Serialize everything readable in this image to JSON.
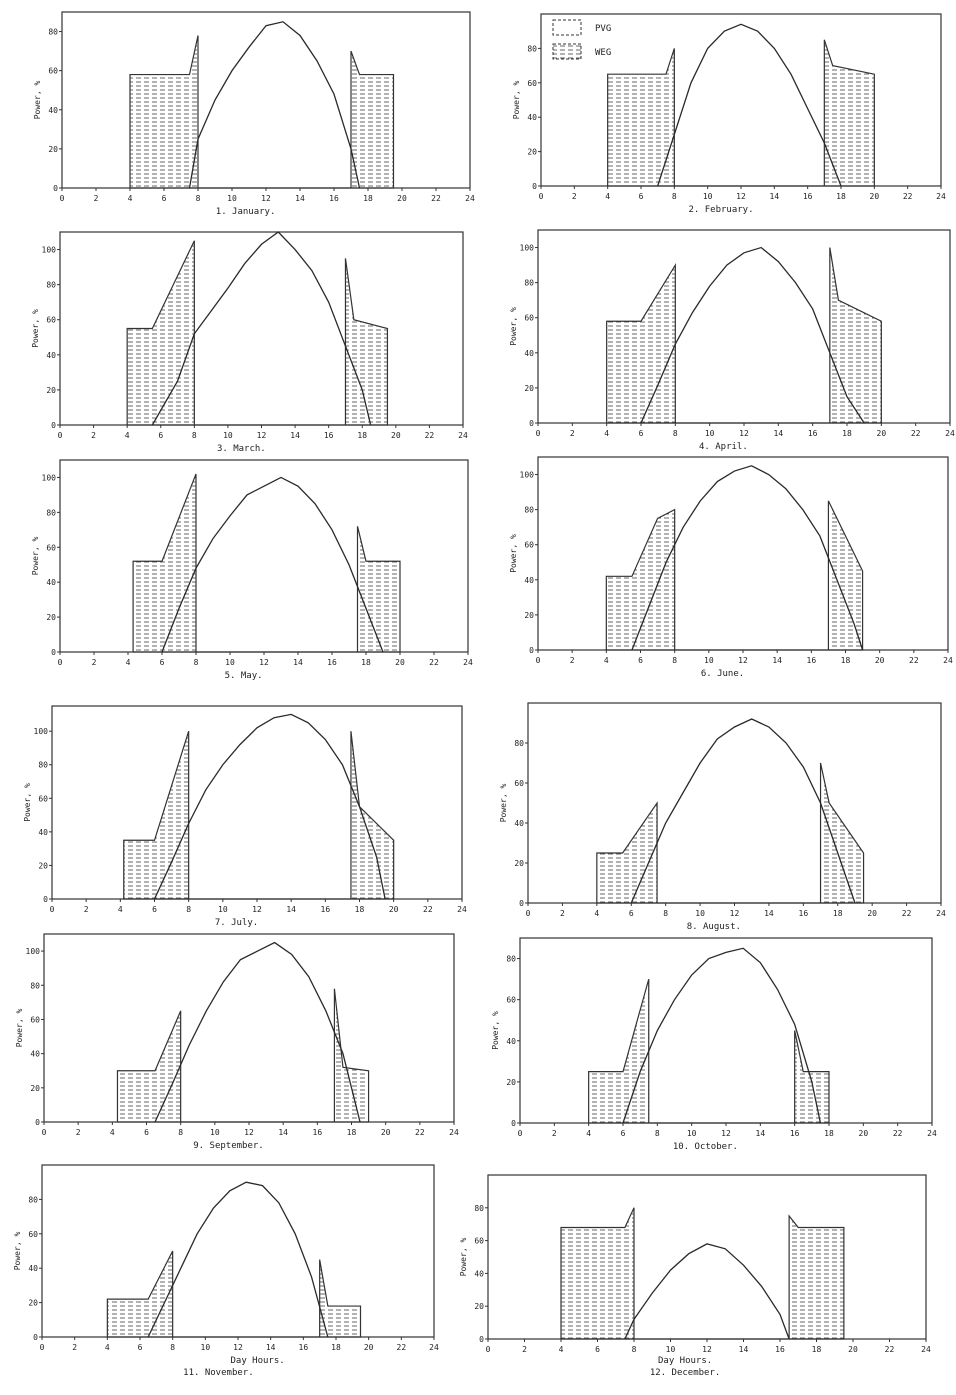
{
  "figure": {
    "common_xlabel": "Day Hours."
  },
  "legend": {
    "items": [
      {
        "label": "PVG",
        "swatch": "empty"
      },
      {
        "label": "WEG",
        "swatch": "hatched"
      }
    ]
  },
  "chart_data": [
    {
      "type": "area",
      "title": "1. January.",
      "ylabel": "Power, %",
      "xlim": [
        0,
        24
      ],
      "ylim": [
        0,
        90
      ],
      "xticks": [
        0,
        2,
        4,
        6,
        8,
        10,
        12,
        14,
        16,
        18,
        20,
        22,
        24
      ],
      "yticks": [
        0,
        20,
        40,
        60,
        80
      ],
      "series": [
        {
          "name": "PVG",
          "x": [
            7.5,
            8,
            9,
            10,
            11,
            12,
            13,
            14,
            15,
            16,
            17,
            17.5
          ],
          "y": [
            0,
            25,
            45,
            60,
            72,
            83,
            85,
            78,
            65,
            48,
            20,
            0
          ]
        },
        {
          "name": "WEG",
          "x": [
            4,
            4,
            7.5,
            8,
            8,
            17,
            17,
            17.5,
            19.5,
            19.5
          ],
          "y": [
            0,
            58,
            58,
            78,
            0,
            0,
            70,
            58,
            58,
            0
          ]
        }
      ]
    },
    {
      "type": "area",
      "title": "2. February.",
      "ylabel": "Power, %",
      "xlim": [
        0,
        24
      ],
      "ylim": [
        0,
        100
      ],
      "xticks": [
        0,
        2,
        4,
        6,
        8,
        10,
        12,
        14,
        16,
        18,
        20,
        22,
        24
      ],
      "yticks": [
        0,
        20,
        40,
        60,
        80
      ],
      "series": [
        {
          "name": "PVG",
          "x": [
            7,
            8,
            9,
            10,
            11,
            12,
            13,
            14,
            15,
            16,
            17,
            18
          ],
          "y": [
            0,
            30,
            60,
            80,
            90,
            94,
            90,
            80,
            65,
            45,
            25,
            0
          ]
        },
        {
          "name": "WEG",
          "x": [
            4,
            4,
            7.5,
            8,
            8,
            17,
            17,
            17.5,
            20,
            20
          ],
          "y": [
            0,
            65,
            65,
            80,
            0,
            0,
            85,
            70,
            65,
            0
          ]
        }
      ]
    },
    {
      "type": "area",
      "title": "3. March.",
      "ylabel": "Power, %",
      "xlim": [
        0,
        24
      ],
      "ylim": [
        0,
        110
      ],
      "xticks": [
        0,
        2,
        4,
        6,
        8,
        10,
        12,
        14,
        16,
        18,
        20,
        22,
        24
      ],
      "yticks": [
        0,
        20,
        40,
        60,
        80,
        100
      ],
      "series": [
        {
          "name": "PVG",
          "x": [
            5.5,
            7,
            8,
            9,
            10,
            11,
            12,
            13,
            14,
            15,
            16,
            17,
            18,
            18.5
          ],
          "y": [
            0,
            25,
            52,
            65,
            78,
            92,
            103,
            110,
            100,
            88,
            70,
            45,
            20,
            0
          ]
        },
        {
          "name": "WEG",
          "x": [
            4,
            4,
            5.5,
            8,
            8,
            17,
            17,
            17.5,
            19.5,
            19.5
          ],
          "y": [
            0,
            55,
            55,
            105,
            0,
            0,
            95,
            60,
            55,
            0
          ]
        }
      ]
    },
    {
      "type": "area",
      "title": "4. April.",
      "ylabel": "Power, %",
      "xlim": [
        0,
        24
      ],
      "ylim": [
        0,
        110
      ],
      "xticks": [
        0,
        2,
        4,
        6,
        8,
        10,
        12,
        14,
        16,
        18,
        20,
        22,
        24
      ],
      "yticks": [
        0,
        20,
        40,
        60,
        80,
        100
      ],
      "series": [
        {
          "name": "PVG",
          "x": [
            6,
            7,
            8,
            9,
            10,
            11,
            12,
            13,
            14,
            15,
            16,
            17,
            18,
            19
          ],
          "y": [
            0,
            22,
            45,
            63,
            78,
            90,
            97,
            100,
            92,
            80,
            65,
            40,
            15,
            0
          ]
        },
        {
          "name": "WEG",
          "x": [
            4,
            4,
            6,
            8,
            8,
            17,
            17,
            17.5,
            20,
            20
          ],
          "y": [
            0,
            58,
            58,
            90,
            0,
            0,
            100,
            70,
            58,
            0
          ]
        }
      ]
    },
    {
      "type": "area",
      "title": "5. May.",
      "ylabel": "Power, %",
      "xlim": [
        0,
        24
      ],
      "ylim": [
        0,
        110
      ],
      "xticks": [
        0,
        2,
        4,
        6,
        8,
        10,
        12,
        14,
        16,
        18,
        20,
        22,
        24
      ],
      "yticks": [
        0,
        20,
        40,
        60,
        80,
        100
      ],
      "series": [
        {
          "name": "PVG",
          "x": [
            6,
            7,
            8,
            9,
            10,
            11,
            12,
            13,
            14,
            15,
            16,
            17,
            18,
            19
          ],
          "y": [
            0,
            25,
            48,
            65,
            78,
            90,
            95,
            100,
            95,
            85,
            70,
            50,
            25,
            0
          ]
        },
        {
          "name": "WEG",
          "x": [
            4.3,
            4.3,
            6,
            8,
            8,
            17.5,
            17.5,
            18,
            20,
            20
          ],
          "y": [
            0,
            52,
            52,
            102,
            0,
            0,
            72,
            52,
            52,
            0
          ]
        }
      ]
    },
    {
      "type": "area",
      "title": "6. June.",
      "ylabel": "Power, %",
      "xlim": [
        0,
        24
      ],
      "ylim": [
        0,
        110
      ],
      "xticks": [
        0,
        2,
        4,
        6,
        8,
        10,
        12,
        14,
        16,
        18,
        20,
        22,
        24
      ],
      "yticks": [
        0,
        20,
        40,
        60,
        80,
        100
      ],
      "series": [
        {
          "name": "PVG",
          "x": [
            5.5,
            6.5,
            7.5,
            8.5,
            9.5,
            10.5,
            11.5,
            12.5,
            13.5,
            14.5,
            15.5,
            16.5,
            17.5,
            18.5,
            19
          ],
          "y": [
            0,
            25,
            50,
            70,
            85,
            96,
            102,
            105,
            100,
            92,
            80,
            65,
            40,
            15,
            0
          ]
        },
        {
          "name": "WEG",
          "x": [
            4,
            4,
            5.5,
            7,
            8,
            8,
            17,
            17,
            19,
            19
          ],
          "y": [
            0,
            42,
            42,
            75,
            80,
            0,
            0,
            85,
            45,
            0
          ]
        }
      ]
    },
    {
      "type": "area",
      "title": "7. July.",
      "ylabel": "Power, %",
      "xlim": [
        0,
        24
      ],
      "ylim": [
        0,
        115
      ],
      "xticks": [
        0,
        2,
        4,
        6,
        8,
        10,
        12,
        14,
        16,
        18,
        20,
        22,
        24
      ],
      "yticks": [
        0,
        20,
        40,
        60,
        80,
        100
      ],
      "series": [
        {
          "name": "PVG",
          "x": [
            6,
            7,
            8,
            9,
            10,
            11,
            12,
            13,
            14,
            15,
            16,
            17,
            18,
            19,
            19.5
          ],
          "y": [
            0,
            22,
            45,
            65,
            80,
            92,
            102,
            108,
            110,
            105,
            95,
            80,
            55,
            25,
            0
          ]
        },
        {
          "name": "WEG",
          "x": [
            4.2,
            4.2,
            6,
            8,
            8,
            17.5,
            17.5,
            18,
            20,
            20
          ],
          "y": [
            0,
            35,
            35,
            100,
            0,
            0,
            100,
            55,
            35,
            0
          ]
        }
      ]
    },
    {
      "type": "area",
      "title": "8. August.",
      "ylabel": "Power, %",
      "xlim": [
        0,
        24
      ],
      "ylim": [
        0,
        100
      ],
      "xticks": [
        0,
        2,
        4,
        6,
        8,
        10,
        12,
        14,
        16,
        18,
        20,
        22,
        24
      ],
      "yticks": [
        0,
        20,
        40,
        60,
        80
      ],
      "series": [
        {
          "name": "PVG",
          "x": [
            6,
            7,
            8,
            9,
            10,
            11,
            12,
            13,
            14,
            15,
            16,
            17,
            18,
            19
          ],
          "y": [
            0,
            20,
            40,
            55,
            70,
            82,
            88,
            92,
            88,
            80,
            68,
            50,
            25,
            0
          ]
        },
        {
          "name": "WEG",
          "x": [
            4,
            4,
            5.5,
            7.5,
            7.5,
            17,
            17,
            17.5,
            19.5,
            19.5
          ],
          "y": [
            0,
            25,
            25,
            50,
            0,
            0,
            70,
            50,
            25,
            0
          ]
        }
      ]
    },
    {
      "type": "area",
      "title": "9. September.",
      "ylabel": "Power, %",
      "xlim": [
        0,
        24
      ],
      "ylim": [
        0,
        110
      ],
      "xticks": [
        0,
        2,
        4,
        6,
        8,
        10,
        12,
        14,
        16,
        18,
        20,
        22,
        24
      ],
      "yticks": [
        0,
        20,
        40,
        60,
        80,
        100
      ],
      "series": [
        {
          "name": "PVG",
          "x": [
            6.5,
            7.5,
            8.5,
            9.5,
            10.5,
            11.5,
            12.5,
            13.5,
            14.5,
            15.5,
            16.5,
            17.5,
            18.5
          ],
          "y": [
            0,
            22,
            45,
            65,
            82,
            95,
            100,
            105,
            98,
            85,
            65,
            40,
            0
          ]
        },
        {
          "name": "WEG",
          "x": [
            4.3,
            4.3,
            6.5,
            8,
            8,
            17,
            17,
            17.5,
            19,
            19
          ],
          "y": [
            0,
            30,
            30,
            65,
            0,
            0,
            78,
            32,
            30,
            0
          ]
        }
      ]
    },
    {
      "type": "area",
      "title": "10. October.",
      "ylabel": "Power, %",
      "xlim": [
        0,
        24
      ],
      "ylim": [
        0,
        90
      ],
      "xticks": [
        0,
        2,
        4,
        6,
        8,
        10,
        12,
        14,
        16,
        18,
        20,
        22,
        24
      ],
      "yticks": [
        0,
        20,
        40,
        60,
        80
      ],
      "series": [
        {
          "name": "PVG",
          "x": [
            6,
            7,
            8,
            9,
            10,
            11,
            12,
            13,
            14,
            15,
            16,
            17,
            17.5
          ],
          "y": [
            0,
            25,
            45,
            60,
            72,
            80,
            83,
            85,
            78,
            65,
            48,
            20,
            0
          ]
        },
        {
          "name": "WEG",
          "x": [
            4,
            4,
            6,
            7.5,
            7.5,
            16,
            16,
            16.5,
            18,
            18
          ],
          "y": [
            0,
            25,
            25,
            70,
            0,
            0,
            45,
            25,
            25,
            0
          ]
        }
      ]
    },
    {
      "type": "area",
      "title": "11. November.",
      "ylabel": "Power, %",
      "xlim": [
        0,
        24
      ],
      "ylim": [
        0,
        100
      ],
      "xticks": [
        0,
        2,
        4,
        6,
        8,
        10,
        12,
        14,
        16,
        18,
        20,
        22,
        24
      ],
      "yticks": [
        0,
        20,
        40,
        60,
        80
      ],
      "series": [
        {
          "name": "PVG",
          "x": [
            6.5,
            7.5,
            8.5,
            9.5,
            10.5,
            11.5,
            12.5,
            13.5,
            14.5,
            15.5,
            16.5,
            17.5
          ],
          "y": [
            0,
            20,
            40,
            60,
            75,
            85,
            90,
            88,
            78,
            60,
            35,
            0
          ]
        },
        {
          "name": "WEG",
          "x": [
            4,
            4,
            6.5,
            8,
            8,
            17,
            17,
            17.5,
            19.5,
            19.5
          ],
          "y": [
            0,
            22,
            22,
            50,
            0,
            0,
            45,
            18,
            18,
            0
          ]
        }
      ]
    },
    {
      "type": "area",
      "title": "12. December.",
      "ylabel": "Power, %",
      "xlim": [
        0,
        24
      ],
      "ylim": [
        0,
        100
      ],
      "xticks": [
        0,
        2,
        4,
        6,
        8,
        10,
        12,
        14,
        16,
        18,
        20,
        22,
        24
      ],
      "yticks": [
        0,
        20,
        40,
        60,
        80
      ],
      "series": [
        {
          "name": "PVG",
          "x": [
            7.5,
            8,
            9,
            10,
            11,
            12,
            13,
            14,
            15,
            16,
            16.5
          ],
          "y": [
            0,
            12,
            28,
            42,
            52,
            58,
            55,
            45,
            32,
            15,
            0
          ]
        },
        {
          "name": "WEG",
          "x": [
            4,
            4,
            7.5,
            8,
            8,
            16.5,
            16.5,
            17,
            19.5,
            19.5
          ],
          "y": [
            0,
            68,
            68,
            80,
            0,
            0,
            75,
            68,
            68,
            0
          ]
        }
      ]
    }
  ]
}
